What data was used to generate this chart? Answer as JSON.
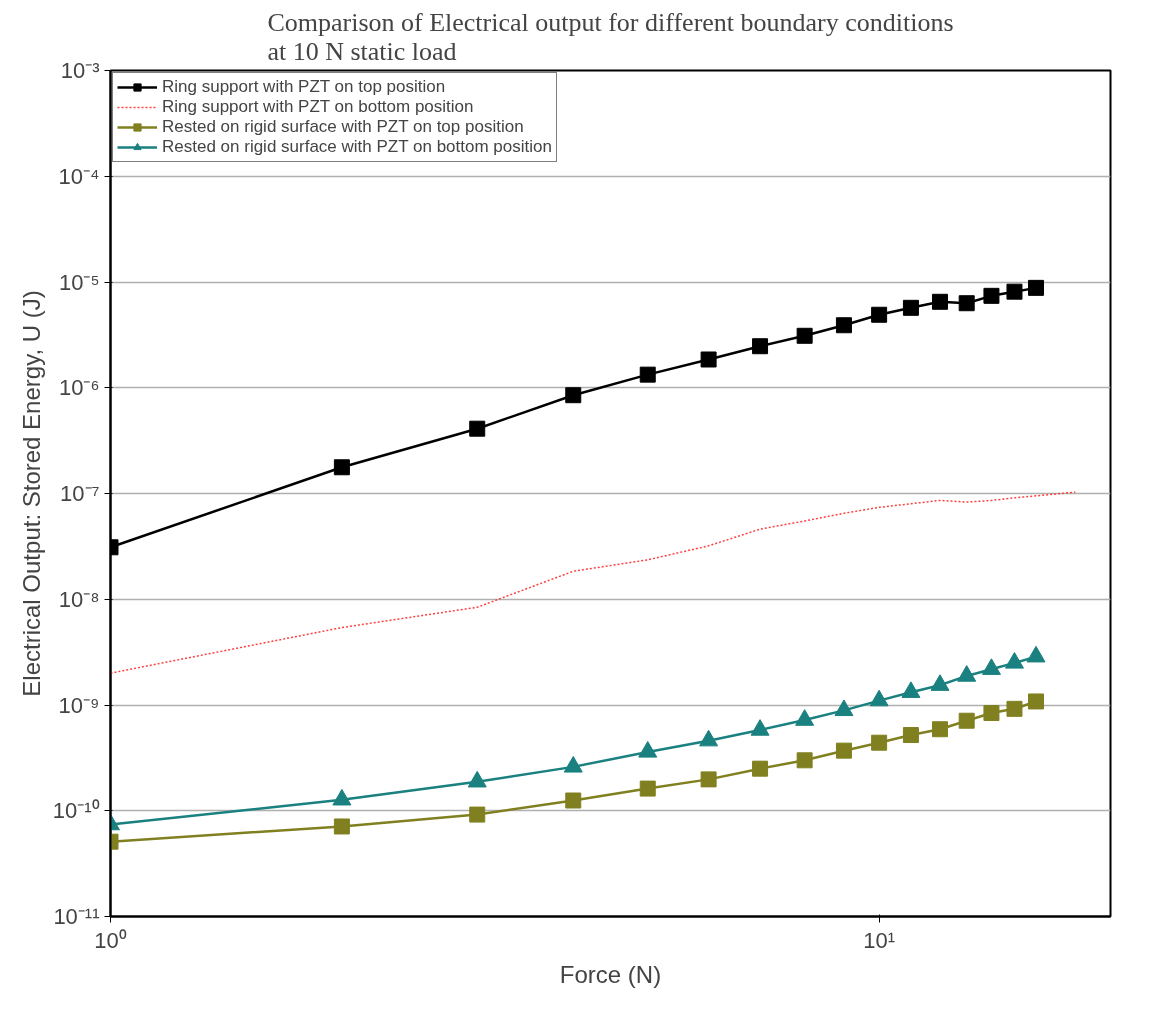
{
  "chart_data": {
    "type": "line",
    "title": "Comparison of Electrical output for different boundary conditions\nat 10 N static load",
    "xlabel": "Force (N)",
    "ylabel": "Electrical Output: Stored Energy, U (J)",
    "x": [
      1,
      2,
      3,
      4,
      5,
      6,
      7,
      8,
      9,
      10,
      11,
      12,
      13,
      14,
      15,
      16
    ],
    "series": [
      {
        "name": "Ring support with PZT on top position",
        "color": "#000000",
        "marker": "square",
        "line_style": "solid",
        "values": [
          3.1e-08,
          1.77e-07,
          4.1e-07,
          8.5e-07,
          1.33e-06,
          1.85e-06,
          2.47e-06,
          3.1e-06,
          3.9e-06,
          4.9e-06,
          5.7e-06,
          6.5e-06,
          6.3e-06,
          7.4e-06,
          8.1e-06,
          8.8e-06
        ]
      },
      {
        "name": "Ring support with PZT on bottom position",
        "color": "#ff4040",
        "marker": "none",
        "line_style": "dotted",
        "x": [
          1,
          2,
          3,
          4,
          5,
          6,
          7,
          8,
          9,
          10,
          11,
          12,
          13,
          14,
          15,
          16,
          18
        ],
        "values": [
          2e-09,
          5.4e-09,
          8.4e-09,
          1.84e-08,
          2.36e-08,
          3.2e-08,
          4.6e-08,
          5.5e-08,
          6.5e-08,
          7.4e-08,
          8e-08,
          8.6e-08,
          8.3e-08,
          8.6e-08,
          9.1e-08,
          9.5e-08,
          1.03e-07
        ]
      },
      {
        "name": "Rested on rigid surface with PZT on top position",
        "color": "#808020",
        "marker": "square",
        "line_style": "solid",
        "values": [
          5.1e-11,
          7.1e-11,
          9.2e-11,
          1.25e-10,
          1.62e-10,
          1.98e-10,
          2.5e-10,
          3e-10,
          3.7e-10,
          4.4e-10,
          5.2e-10,
          5.9e-10,
          7.1e-10,
          8.4e-10,
          9.2e-10,
          1.08e-09
        ]
      },
      {
        "name": "Rested on rigid surface with PZT on bottom position",
        "color": "#1a8080",
        "marker": "triangle",
        "line_style": "solid",
        "values": [
          7.4e-11,
          1.27e-10,
          1.88e-10,
          2.6e-10,
          3.6e-10,
          4.6e-10,
          5.8e-10,
          7.2e-10,
          8.9e-10,
          1.1e-09,
          1.32e-09,
          1.54e-09,
          1.88e-09,
          2.18e-09,
          2.5e-09,
          2.86e-09
        ]
      }
    ],
    "log": "xy",
    "xlim": [
      1,
      20
    ],
    "xticks": [
      {
        "value": 1,
        "label": "10⁰"
      },
      {
        "value": 10,
        "label": "10¹"
      }
    ],
    "ylim": [
      1e-11,
      0.001
    ],
    "yticks": [
      {
        "value": 1e-11,
        "label": "10⁻¹¹"
      },
      {
        "value": 1e-10,
        "label": "10⁻¹⁰"
      },
      {
        "value": 1e-09,
        "label": "10⁻⁹"
      },
      {
        "value": 1e-08,
        "label": "10⁻⁸"
      },
      {
        "value": 1e-07,
        "label": "10⁻⁷"
      },
      {
        "value": 1e-06,
        "label": "10⁻⁶"
      },
      {
        "value": 1e-05,
        "label": "10⁻⁵"
      },
      {
        "value": 0.0001,
        "label": "10⁻⁴"
      },
      {
        "value": 0.001,
        "label": "10⁻³"
      }
    ],
    "grid": "y",
    "legend": "top left"
  }
}
